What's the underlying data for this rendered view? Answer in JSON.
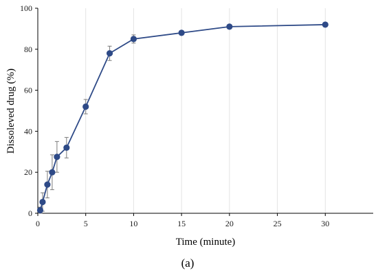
{
  "chart_data": {
    "type": "line",
    "title": "",
    "xlabel": "Time (minute)",
    "ylabel": "Dissoleved drug (%)",
    "caption": "(a)",
    "xlim": [
      0,
      35
    ],
    "ylim": [
      0,
      100
    ],
    "xticks": [
      0,
      5,
      10,
      15,
      20,
      25,
      30
    ],
    "yticks": [
      0,
      20,
      40,
      60,
      80,
      100
    ],
    "grid": "vertical",
    "legend": "none",
    "series": [
      {
        "color": "#2e4a87",
        "x": [
          0.25,
          0.5,
          1,
          1.5,
          2,
          3,
          5,
          7.5,
          10,
          15,
          20,
          30
        ],
        "y": [
          1.5,
          5.5,
          14,
          20,
          27.5,
          32,
          52,
          78,
          85,
          88,
          91,
          92
        ],
        "error": [
          1.5,
          4.5,
          6.5,
          8.5,
          7.5,
          5,
          3.5,
          3.5,
          2,
          1,
          0.8,
          0.5
        ]
      }
    ]
  }
}
